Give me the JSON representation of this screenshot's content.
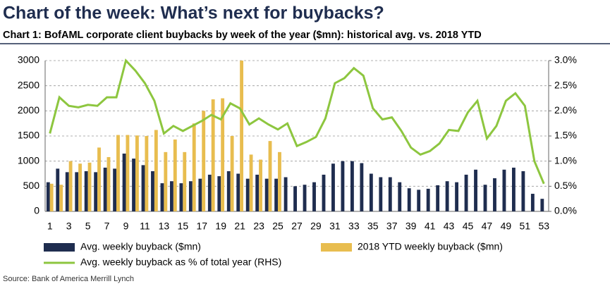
{
  "chart_data": {
    "type": "bar_line",
    "title": "Chart of the week: What’s next for buybacks?",
    "subtitle": "Chart 1: BofAML corporate client buybacks by week of the year ($mn): historical avg. vs. 2018 YTD",
    "source": "Source: Bank of America Merrill Lynch",
    "categories": [
      1,
      null,
      3,
      null,
      5,
      null,
      7,
      null,
      9,
      null,
      11,
      null,
      13,
      null,
      15,
      null,
      17,
      null,
      19,
      null,
      21,
      null,
      23,
      null,
      25,
      null,
      27,
      null,
      29,
      null,
      31,
      null,
      33,
      null,
      35,
      null,
      37,
      null,
      39,
      null,
      41,
      null,
      43,
      null,
      45,
      null,
      47,
      null,
      49,
      null,
      51,
      null,
      53
    ],
    "series": [
      {
        "name": "Avg. weekly buyback ($mn)",
        "color": "#1f2d4f",
        "type": "bar",
        "values": [
          580,
          850,
          780,
          780,
          800,
          780,
          870,
          850,
          1150,
          1050,
          920,
          800,
          560,
          600,
          560,
          600,
          650,
          730,
          700,
          800,
          750,
          650,
          730,
          650,
          650,
          680,
          500,
          530,
          580,
          730,
          950,
          1000,
          1000,
          960,
          750,
          680,
          680,
          580,
          460,
          430,
          450,
          520,
          600,
          580,
          730,
          830,
          530,
          660,
          830,
          870,
          800,
          350,
          250
        ]
      },
      {
        "name": "2018 YTD weekly buyback ($mn)",
        "color": "#e8bd4f",
        "type": "bar",
        "values": [
          550,
          530,
          1000,
          950,
          970,
          1270,
          1080,
          1520,
          1520,
          1510,
          1500,
          1620,
          1180,
          1430,
          1180,
          1750,
          2000,
          2230,
          2250,
          1500,
          3000,
          1130,
          1030,
          1400,
          1180,
          null,
          null,
          null,
          null,
          null,
          null,
          null,
          null,
          null,
          null,
          null,
          null,
          null,
          null,
          null,
          null,
          null,
          null,
          null,
          null,
          null,
          null,
          null,
          null,
          null,
          null,
          null,
          null
        ]
      },
      {
        "name": "Avg. weekly buyback as % of total year (RHS)",
        "color": "#8dc63f",
        "type": "line",
        "axis": "y2",
        "values": [
          1.55,
          2.27,
          2.1,
          2.07,
          2.12,
          2.1,
          2.27,
          2.27,
          3.0,
          2.8,
          2.55,
          2.2,
          1.55,
          1.7,
          1.6,
          1.7,
          1.8,
          1.92,
          1.83,
          2.15,
          2.05,
          1.73,
          1.85,
          1.73,
          1.63,
          1.75,
          1.3,
          1.38,
          1.48,
          1.85,
          2.55,
          2.65,
          2.85,
          2.7,
          2.05,
          1.83,
          1.87,
          1.6,
          1.27,
          1.13,
          1.2,
          1.35,
          1.62,
          1.6,
          1.97,
          2.2,
          1.45,
          1.7,
          2.2,
          2.35,
          2.1,
          1.0,
          0.55
        ]
      }
    ],
    "ylim": [
      0,
      3000
    ],
    "yticks": [
      0,
      500,
      1000,
      1500,
      2000,
      2500,
      3000
    ],
    "y2lim": [
      0,
      3.0
    ],
    "y2ticks": [
      {
        "value": 0,
        "label": "0.0%"
      },
      {
        "value": 0.5,
        "label": "0.5%"
      },
      {
        "value": 1.0,
        "label": "1.0%"
      },
      {
        "value": 1.5,
        "label": "1.5%"
      },
      {
        "value": 2.0,
        "label": "2.0%"
      },
      {
        "value": 2.5,
        "label": "2.5%"
      },
      {
        "value": 3.0,
        "label": "3.0%"
      }
    ],
    "grid": true
  }
}
